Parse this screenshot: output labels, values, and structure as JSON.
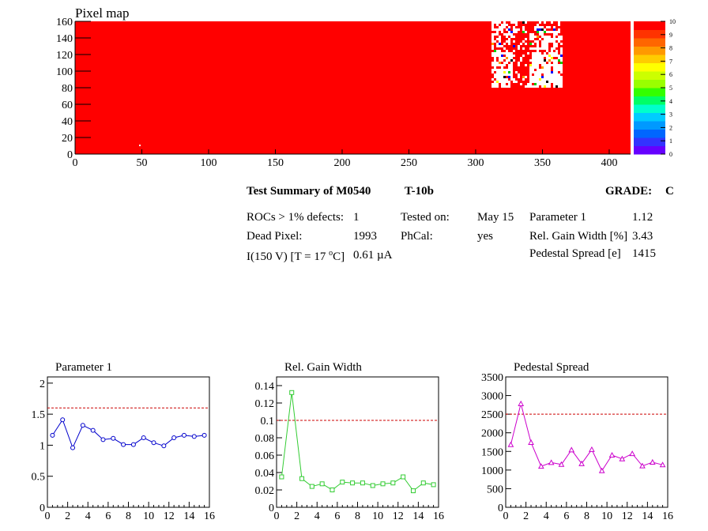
{
  "pixel_map": {
    "title": "Pixel map",
    "y_ticks": [
      "0",
      "20",
      "40",
      "60",
      "80",
      "100",
      "120",
      "140",
      "160"
    ],
    "x_ticks": [
      "0",
      "50",
      "100",
      "150",
      "200",
      "250",
      "300",
      "350",
      "400"
    ],
    "palette_labels": [
      "0",
      "1",
      "2",
      "3",
      "4",
      "5",
      "6",
      "7",
      "8",
      "9",
      "10"
    ],
    "colors": {
      "main": "#ff0000",
      "dot": "#ffffff"
    }
  },
  "summary": {
    "title": "Test Summary of M0540",
    "temp": "T-10b",
    "grade_label": "GRADE:",
    "grade": "C",
    "rocs_label": "ROCs > 1% defects:",
    "rocs_value": "1",
    "dead_label": "Dead Pixel:",
    "dead_value": "1993",
    "current_label_pre": "I(150 V) [T = 17 ",
    "current_sup": "o",
    "current_label_post": "C]",
    "current_value": "0.61 µA",
    "tested_label": "Tested on:",
    "tested_value": "May 15",
    "phcal_label": "PhCal:",
    "phcal_value": "yes",
    "param1_label": "Parameter 1",
    "param1_value": "1.12",
    "gain_label": "Rel. Gain Width [%]",
    "gain_value": "3.43",
    "ped_label": "Pedestal Spread [e]",
    "ped_value": "1415"
  },
  "chart_data": [
    {
      "type": "line",
      "title": "Parameter 1",
      "x": [
        0.5,
        1.5,
        2.5,
        3.5,
        4.5,
        5.5,
        6.5,
        7.5,
        8.5,
        9.5,
        10.5,
        11.5,
        12.5,
        13.5,
        14.5,
        15.5
      ],
      "values": [
        1.16,
        1.41,
        0.96,
        1.32,
        1.24,
        1.09,
        1.11,
        1.01,
        1.01,
        1.12,
        1.04,
        0.99,
        1.12,
        1.16,
        1.14,
        1.16
      ],
      "xlim": [
        0,
        16
      ],
      "ylim": [
        0,
        2.1
      ],
      "x_ticks": [
        "0",
        "2",
        "4",
        "6",
        "8",
        "10",
        "12",
        "14",
        "16"
      ],
      "y_ticks": [
        "0",
        "0.5",
        "1",
        "1.5",
        "2"
      ],
      "threshold": 1.6,
      "color": "#0000cc",
      "marker": "circle"
    },
    {
      "type": "line",
      "title": "Rel. Gain Width",
      "x": [
        0.5,
        1.5,
        2.5,
        3.5,
        4.5,
        5.5,
        6.5,
        7.5,
        8.5,
        9.5,
        10.5,
        11.5,
        12.5,
        13.5,
        14.5,
        15.5
      ],
      "values": [
        0.035,
        0.132,
        0.033,
        0.024,
        0.027,
        0.02,
        0.029,
        0.028,
        0.028,
        0.025,
        0.027,
        0.028,
        0.035,
        0.019,
        0.028,
        0.026
      ],
      "xlim": [
        0,
        16
      ],
      "ylim": [
        0,
        0.15
      ],
      "x_ticks": [
        "0",
        "2",
        "4",
        "6",
        "8",
        "10",
        "12",
        "14",
        "16"
      ],
      "y_ticks": [
        "0",
        "0.02",
        "0.04",
        "0.06",
        "0.08",
        "0.1",
        "0.12",
        "0.14"
      ],
      "threshold": 0.1,
      "color": "#33cc33",
      "marker": "square"
    },
    {
      "type": "line",
      "title": "Pedestal Spread",
      "x": [
        0.5,
        1.5,
        2.5,
        3.5,
        4.5,
        5.5,
        6.5,
        7.5,
        8.5,
        9.5,
        10.5,
        11.5,
        12.5,
        13.5,
        14.5,
        15.5
      ],
      "values": [
        1680,
        2780,
        1740,
        1100,
        1200,
        1150,
        1540,
        1170,
        1550,
        980,
        1400,
        1300,
        1440,
        1110,
        1210,
        1140
      ],
      "xlim": [
        0,
        16
      ],
      "ylim": [
        0,
        3500
      ],
      "x_ticks": [
        "0",
        "2",
        "4",
        "6",
        "8",
        "10",
        "12",
        "14",
        "16"
      ],
      "y_ticks": [
        "0",
        "500",
        "1000",
        "1500",
        "2000",
        "2500",
        "3000",
        "3500"
      ],
      "threshold": 2500,
      "color": "#cc00cc",
      "marker": "triangle"
    }
  ]
}
